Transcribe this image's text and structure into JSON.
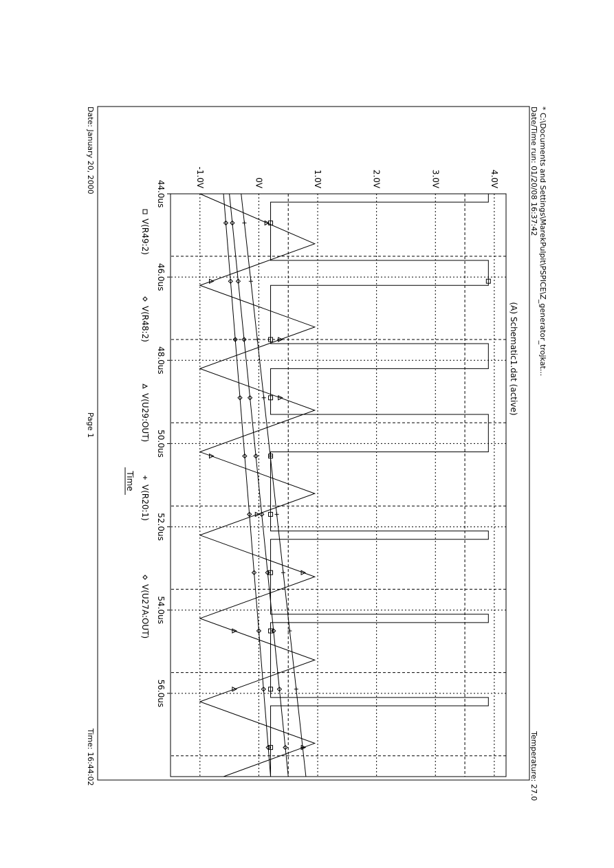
{
  "header": {
    "file_path": "* C:\\Documents and Settings\\MarekPulpit\\PSPICE\\Z_generator_trojkat...",
    "run_datetime": "Date/Time run: 01/20/08 16:37:42",
    "temperature": "Temperature: 27.0",
    "sim_title": "(A) Schematic1.dat (active)"
  },
  "footer": {
    "date": "Date: January 20, 2000",
    "page": "Page 1",
    "time": "Time: 16:44:02"
  },
  "chart_data": {
    "type": "line",
    "title": "(A) Schematic1.dat (active)",
    "xlabel": "Time",
    "ylabel": "",
    "xlim": [
      44.0,
      58.0
    ],
    "ylim": [
      -1.5,
      4.2
    ],
    "xtick_labels": [
      "44.0us",
      "46.0us",
      "48.0us",
      "50.0us",
      "52.0us",
      "54.0us",
      "56.0us"
    ],
    "xticks": [
      44,
      46,
      48,
      50,
      52,
      54,
      56
    ],
    "ytick_labels": [
      "-1.0V",
      "0V",
      "1.0V",
      "2.0V",
      "3.0V",
      "4.0V"
    ],
    "yticks": [
      -1,
      0,
      1,
      2,
      3,
      4
    ],
    "grid": true,
    "legend_position": "bottom",
    "series": [
      {
        "name": "V(R49:2)",
        "marker": "square",
        "x": [
          44.0,
          44.0,
          44.2,
          44.2,
          45.6,
          45.6,
          46.2,
          46.2,
          47.6,
          47.6,
          48.2,
          48.2,
          49.3,
          49.3,
          50.2,
          50.2,
          52.1,
          52.1,
          52.3,
          52.3,
          54.1,
          54.1,
          54.3,
          54.3,
          56.1,
          56.1,
          56.3,
          56.3,
          58.0,
          58.0,
          58.0
        ],
        "y": [
          0.2,
          3.9,
          3.9,
          0.2,
          0.2,
          3.9,
          3.9,
          0.2,
          0.2,
          3.9,
          3.9,
          0.2,
          0.2,
          3.9,
          3.9,
          0.2,
          0.2,
          3.9,
          3.9,
          0.2,
          0.2,
          3.9,
          3.9,
          0.2,
          0.2,
          3.9,
          3.9,
          0.2,
          0.2,
          3.9,
          3.9
        ]
      },
      {
        "name": "V(R48:2)",
        "marker": "diamond",
        "x": [
          44.0,
          58.0
        ],
        "y": [
          -0.6,
          0.2
        ]
      },
      {
        "name": "V(U29:OUT)",
        "marker": "triangle",
        "x": [
          44.0,
          45.2,
          46.2,
          47.2,
          48.2,
          49.2,
          50.2,
          51.2,
          52.2,
          53.2,
          54.2,
          55.2,
          56.2,
          57.2,
          58.0
        ],
        "y": [
          -1.0,
          0.95,
          -1.0,
          0.95,
          -1.0,
          0.95,
          -1.0,
          0.95,
          -1.0,
          0.95,
          -1.0,
          0.95,
          -1.0,
          0.95,
          -0.6
        ]
      },
      {
        "name": "V(R20:1)",
        "marker": "star",
        "x": [
          44.0,
          58.0
        ],
        "y": [
          -0.3,
          0.8
        ]
      },
      {
        "name": "V(U27A:OUT)",
        "marker": "diamond",
        "x": [
          44.0,
          58.0
        ],
        "y": [
          -0.5,
          0.5
        ]
      }
    ]
  }
}
